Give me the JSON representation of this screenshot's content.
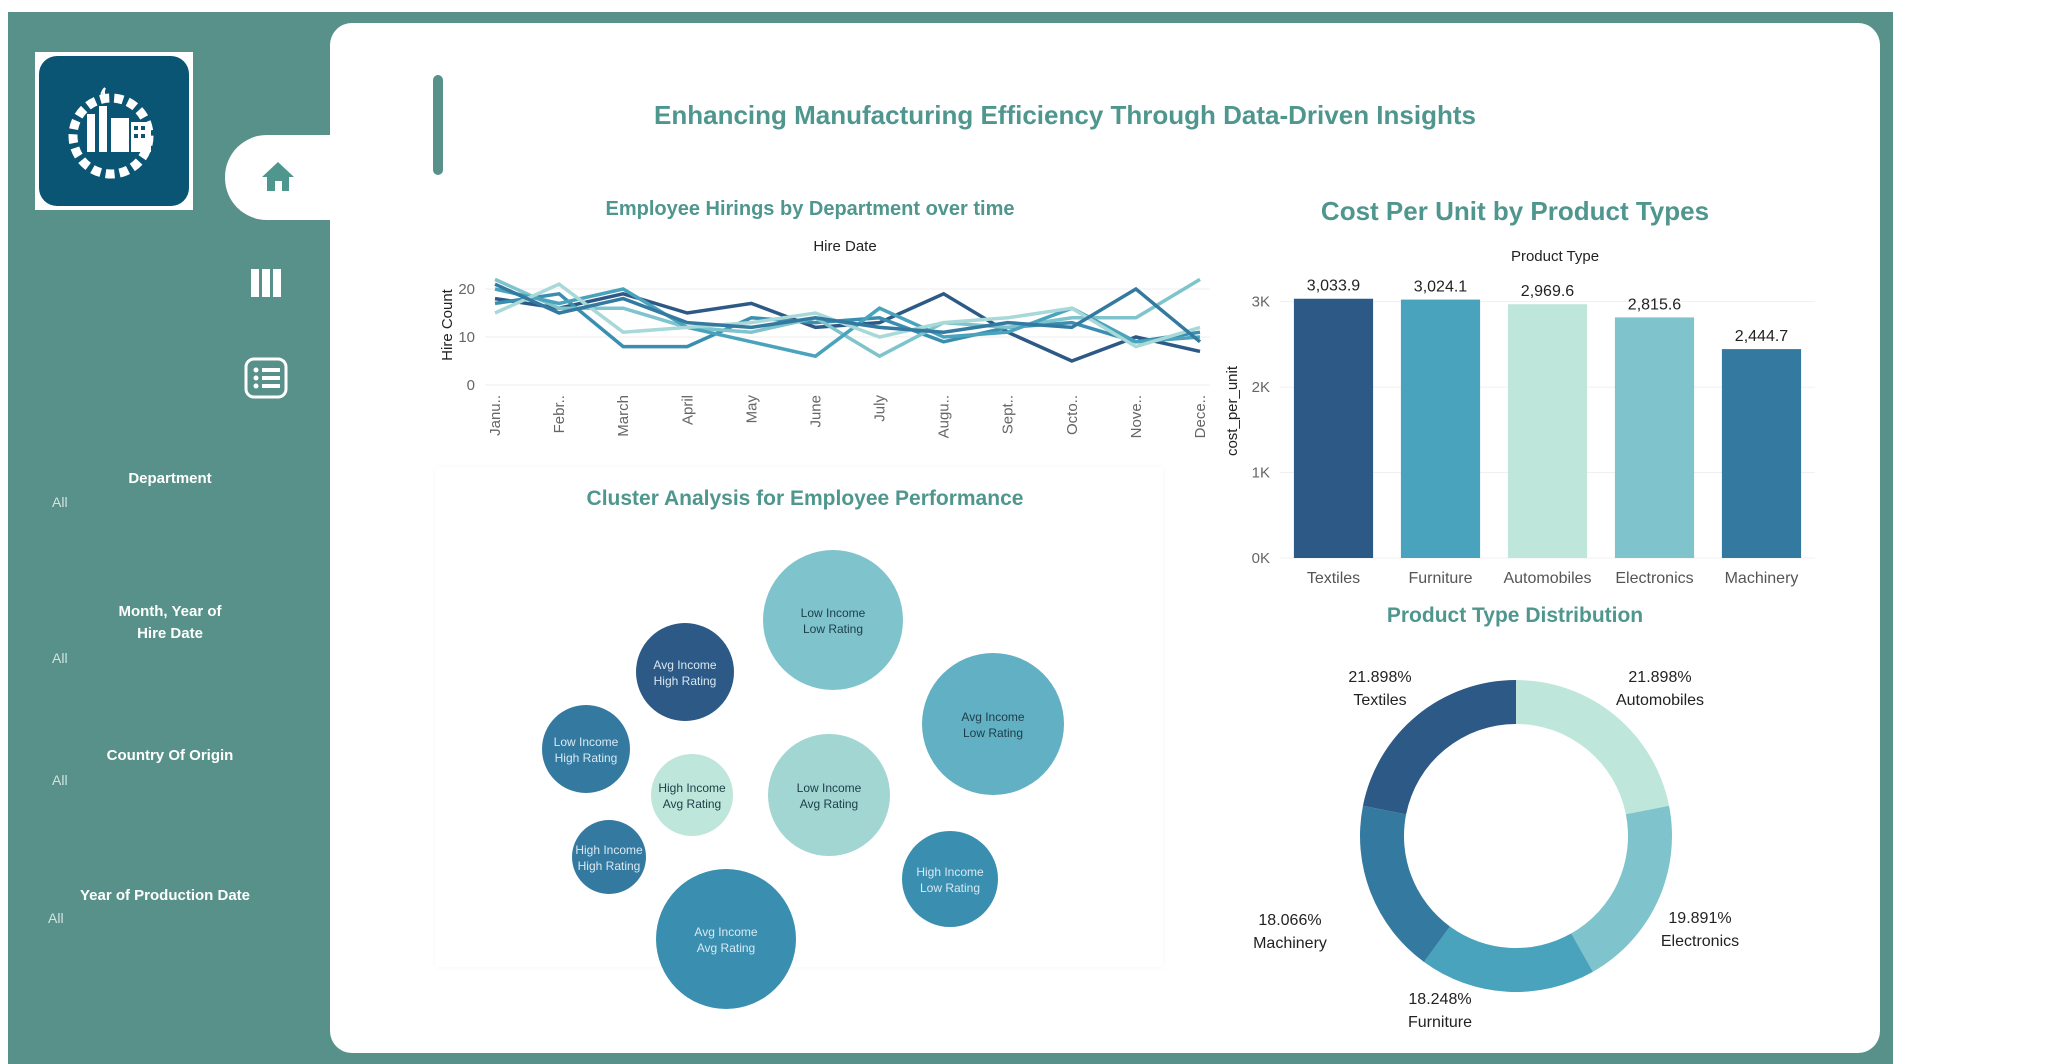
{
  "dashboard": {
    "title": "Enhancing Manufacturing Efficiency Through Data-Driven Insights"
  },
  "colors": {
    "frame": "#579189",
    "title": "#4f968f",
    "dark_blue": "#2c5985",
    "mid_blue": "#3a8fb0",
    "teal": "#4aa3bd",
    "light_teal": "#7fc4cc",
    "mint": "#bfe6da",
    "steel": "#347aa0"
  },
  "sidebar": {
    "nav": [
      {
        "name": "home",
        "icon": "home-icon"
      },
      {
        "name": "bars",
        "icon": "columns-icon"
      },
      {
        "name": "list",
        "icon": "list-icon"
      }
    ],
    "filters": [
      {
        "title": "Department",
        "value": "All"
      },
      {
        "title_line1": "Month, Year of",
        "title_line2": "Hire Date",
        "value": "All"
      },
      {
        "title": "Country Of Origin",
        "value": "All"
      },
      {
        "title": "Year of Production Date",
        "value": "All"
      }
    ]
  },
  "hirings": {
    "title": "Employee Hirings by Department over time",
    "x_header": "Hire Date",
    "y_label": "Hire Count"
  },
  "cost": {
    "title": "Cost Per Unit by Product Types",
    "x_header": "Product Type",
    "y_label": "cost_per_unit"
  },
  "cluster": {
    "title": "Cluster Analysis for Employee Performance"
  },
  "distribution": {
    "title": "Product Type Distribution"
  },
  "chart_data": [
    {
      "type": "line",
      "title": "Employee Hirings by Department over time",
      "xlabel": "Hire Date",
      "ylabel": "Hire Count",
      "categories": [
        "Janu..",
        "Febr..",
        "March",
        "April",
        "May",
        "June",
        "July",
        "Augu..",
        "Sept..",
        "Octo..",
        "Nove..",
        "Dece.."
      ],
      "yticks": [
        "0",
        "10",
        "20"
      ],
      "ylim": [
        0,
        25
      ],
      "series": [
        {
          "color": "#2c5985",
          "values": [
            18,
            16,
            19,
            15,
            17,
            12,
            13,
            19,
            11,
            5,
            10,
            7
          ]
        },
        {
          "color": "#3a8fb0",
          "values": [
            17,
            19,
            8,
            8,
            14,
            13,
            14,
            9,
            12,
            13,
            9,
            11
          ]
        },
        {
          "color": "#7fc4cc",
          "values": [
            22,
            16,
            16,
            12,
            11,
            14,
            6,
            13,
            12,
            14,
            14,
            22
          ]
        },
        {
          "color": "#4aa3bd",
          "values": [
            20,
            17,
            20,
            12,
            9,
            6,
            16,
            10,
            11,
            16,
            9,
            10
          ]
        },
        {
          "color": "#a8d9d8",
          "values": [
            15,
            21,
            11,
            12,
            13,
            15,
            10,
            13,
            14,
            16,
            8,
            12
          ]
        },
        {
          "color": "#347aa0",
          "values": [
            21,
            15,
            18,
            13,
            12,
            14,
            12,
            11,
            13,
            12,
            20,
            9
          ]
        }
      ]
    },
    {
      "type": "bar",
      "title": "Cost Per Unit by Product Types",
      "xlabel": "Product Type",
      "ylabel": "cost_per_unit",
      "categories": [
        "Textiles",
        "Furniture",
        "Automobiles",
        "Electronics",
        "Machinery"
      ],
      "values": [
        3033.9,
        3024.1,
        2969.6,
        2815.6,
        2444.7
      ],
      "labels": [
        "3,033.9",
        "3,024.1",
        "2,969.6",
        "2,815.6",
        "2,444.7"
      ],
      "colors": [
        "#2c5985",
        "#4aa3bd",
        "#bfe6da",
        "#7fc4cc",
        "#347aa0"
      ],
      "yticks": [
        "0K",
        "1K",
        "2K",
        "3K"
      ],
      "ylim": [
        0,
        3300
      ]
    },
    {
      "type": "bubble",
      "title": "Cluster Analysis for Employee Performance",
      "bubbles": [
        {
          "line1": "Low Income",
          "line2": "Low Rating",
          "size": 70,
          "color": "#7fc4cc",
          "text": "#1d3d4a"
        },
        {
          "line1": "Avg Income",
          "line2": "High Rating",
          "size": 49,
          "color": "#2c5985",
          "text": "#d9e8f2"
        },
        {
          "line1": "Avg Income",
          "line2": "Low Rating",
          "size": 71,
          "color": "#62b0c3",
          "text": "#1d3d4a"
        },
        {
          "line1": "Low Income",
          "line2": "High Rating",
          "size": 44,
          "color": "#347aa0",
          "text": "#d9e8f2"
        },
        {
          "line1": "High Income",
          "line2": "Avg Rating",
          "size": 41,
          "color": "#bfe6da",
          "text": "#1d3d4a"
        },
        {
          "line1": "Low Income",
          "line2": "Avg Rating",
          "size": 61,
          "color": "#a2d6d2",
          "text": "#1d3d4a"
        },
        {
          "line1": "High Income",
          "line2": "High Rating",
          "size": 37,
          "color": "#347aa0",
          "text": "#d9e8f2"
        },
        {
          "line1": "High Income",
          "line2": "Low Rating",
          "size": 48,
          "color": "#3a8fb0",
          "text": "#d9e8f2"
        },
        {
          "line1": "Avg Income",
          "line2": "Avg Rating",
          "size": 70,
          "color": "#3a8fb0",
          "text": "#d9e8f2"
        }
      ]
    },
    {
      "type": "pie",
      "title": "Product Type Distribution",
      "slices": [
        {
          "label": "Automobiles",
          "percent": "21.898%",
          "value": 21.898,
          "color": "#bfe6da"
        },
        {
          "label": "Electronics",
          "percent": "19.891%",
          "value": 19.891,
          "color": "#7fc4cc"
        },
        {
          "label": "Furniture",
          "percent": "18.248%",
          "value": 18.248,
          "color": "#4aa3bd"
        },
        {
          "label": "Machinery",
          "percent": "18.066%",
          "value": 18.066,
          "color": "#347aa0"
        },
        {
          "label": "Textiles",
          "percent": "21.898%",
          "value": 21.898,
          "color": "#2c5985"
        }
      ]
    }
  ]
}
